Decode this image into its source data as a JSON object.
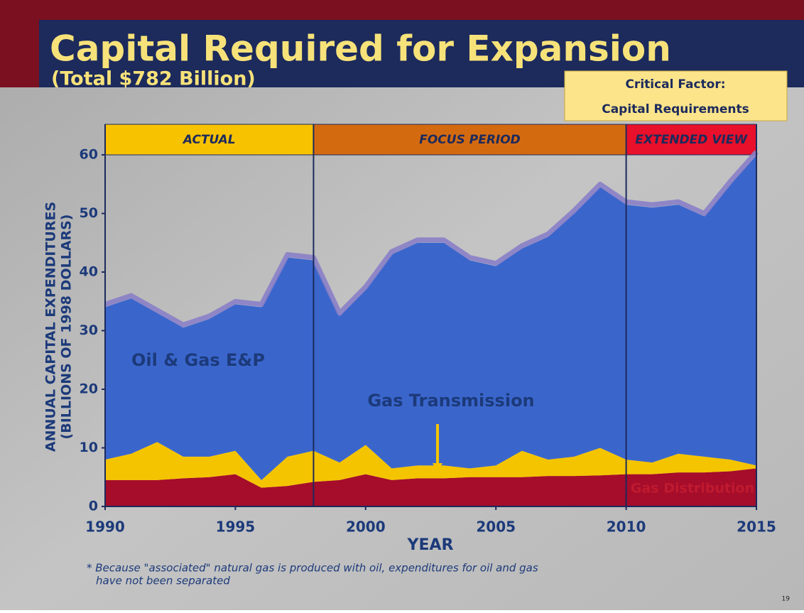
{
  "chart_data": {
    "type": "area",
    "title": "Capital Required for Expansion",
    "subtitle": "(Total $782 Billion)",
    "callout": [
      "Critical Factor:",
      "Capital Requirements"
    ],
    "ylabel": [
      "ANNUAL CAPITAL EXPENDITURES",
      "(BILLIONS OF 1998 DOLLARS)"
    ],
    "xlabel": "YEAR",
    "footnote": [
      "* Because \"associated\" natural gas is produced with oil, expenditures for oil and gas",
      "have not been separated"
    ],
    "page_number": "19",
    "x": [
      1990,
      1991,
      1992,
      1993,
      1994,
      1995,
      1996,
      1997,
      1998,
      1999,
      2000,
      2001,
      2002,
      2003,
      2004,
      2005,
      2006,
      2007,
      2008,
      2009,
      2010,
      2011,
      2012,
      2013,
      2014,
      2015
    ],
    "series": [
      {
        "name": "Gas Distribution",
        "color": "#a50d2a",
        "values": [
          4.5,
          4.5,
          4.5,
          4.8,
          5,
          5.5,
          3.2,
          3.5,
          4.2,
          4.5,
          5.5,
          4.5,
          4.8,
          4.8,
          5,
          5,
          5,
          5.2,
          5.2,
          5.3,
          5.5,
          5.5,
          5.8,
          5.8,
          6,
          6.5
        ]
      },
      {
        "name": "Gas Transmission",
        "color": "#f5c400",
        "values": [
          3.5,
          4.5,
          6.5,
          3.7,
          3.5,
          4,
          1.3,
          5,
          5.3,
          3,
          5,
          2,
          2.2,
          2.2,
          1.5,
          2,
          4.5,
          2.8,
          3.3,
          4.7,
          2.5,
          2,
          3.2,
          2.7,
          2,
          0.5
        ]
      },
      {
        "name": "Oil & Gas E&P",
        "color": "#3a66cc",
        "values": [
          26,
          26.5,
          22,
          22,
          23.5,
          25,
          29.5,
          34,
          32.5,
          25,
          26.5,
          36.5,
          38,
          38,
          35.5,
          34,
          34.5,
          38,
          41.5,
          44.5,
          43.5,
          43.5,
          42.5,
          41,
          47,
          53
        ]
      }
    ],
    "periods": [
      {
        "label": "ACTUAL",
        "start": 1990,
        "end": 1998,
        "color": "#f7c200"
      },
      {
        "label": "FOCUS PERIOD",
        "start": 1998,
        "end": 2010,
        "color": "#d46a10"
      },
      {
        "label": "EXTENDED VIEW",
        "start": 2010,
        "end": 2015,
        "color": "#e8102a"
      }
    ],
    "xlim": [
      1990,
      2015
    ],
    "ylim": [
      0,
      60
    ],
    "xticks": [
      1990,
      1995,
      2000,
      2005,
      2010,
      2015
    ],
    "yticks": [
      0,
      10,
      20,
      30,
      40,
      50,
      60
    ]
  }
}
